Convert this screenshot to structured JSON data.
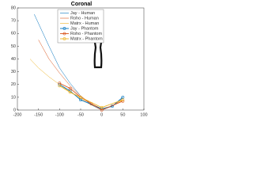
{
  "chart_data": {
    "type": "line",
    "title": "Coronal",
    "xlim": [
      -200,
      100
    ],
    "xticks": [
      -200,
      -150,
      -100,
      -50,
      0,
      50,
      100
    ],
    "ylim": [
      0,
      80
    ],
    "yticks": [
      0,
      10,
      20,
      30,
      40,
      50,
      60,
      70,
      80
    ],
    "legend": "top-right",
    "series": [
      {
        "name": "Jay - Human",
        "color": "#0072bd",
        "markers": false,
        "x": [
          -160,
          -125,
          -100,
          -75,
          -50,
          -25,
          0,
          25,
          50
        ],
        "values": [
          75,
          50,
          33,
          21,
          11,
          4,
          0,
          3,
          10
        ]
      },
      {
        "name": "Roho - Human",
        "color": "#d95319",
        "markers": false,
        "x": [
          -150,
          -125,
          -100,
          -75,
          -50,
          -25,
          0,
          25,
          50
        ],
        "values": [
          55,
          40,
          29,
          19,
          11,
          5,
          1,
          3,
          9
        ]
      },
      {
        "name": "Matrx - Human",
        "color": "#edb120",
        "markers": false,
        "x": [
          -170,
          -150,
          -125,
          -100,
          -75,
          -50,
          -25,
          0,
          25,
          50
        ],
        "values": [
          40,
          33,
          26,
          20,
          14,
          9,
          4,
          1,
          3,
          8
        ]
      },
      {
        "name": "Jay - Phantom",
        "color": "#0072bd",
        "markers": true,
        "x": [
          -100,
          -75,
          -50,
          0,
          25,
          50
        ],
        "values": [
          20,
          15,
          8,
          1,
          3,
          10
        ]
      },
      {
        "name": "Roho - Phantom",
        "color": "#d95319",
        "markers": true,
        "x": [
          -100,
          -75,
          -50,
          -25,
          0,
          50
        ],
        "values": [
          21,
          17,
          10,
          5,
          0,
          7
        ]
      },
      {
        "name": "Matrx - Phantom",
        "color": "#edb120",
        "markers": true,
        "x": [
          -100,
          -75,
          -50,
          0,
          50
        ],
        "values": [
          19,
          14,
          10,
          2,
          8
        ]
      }
    ]
  }
}
